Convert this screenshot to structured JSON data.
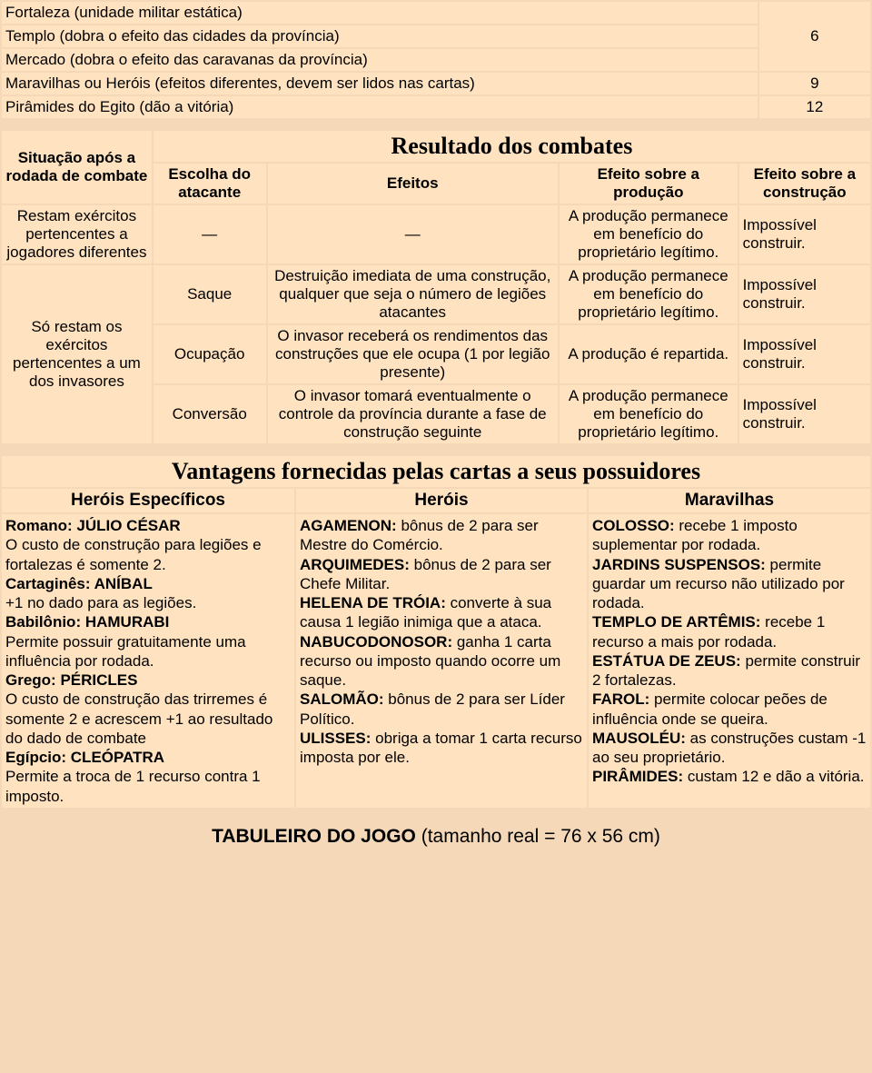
{
  "table1": {
    "rows": [
      {
        "label": "Fortaleza (unidade militar estática)",
        "value": ""
      },
      {
        "label": "Templo (dobra o efeito das cidades da província)",
        "value": ""
      },
      {
        "label": "Mercado (dobra o efeito das caravanas da província)",
        "value": "6"
      },
      {
        "label": "Maravilhas ou Heróis (efeitos diferentes, devem ser lidos nas cartas)",
        "value": "9"
      },
      {
        "label": "Pirâmides do Egito (dão a vitória)",
        "value": "12"
      }
    ]
  },
  "table2": {
    "title": "Resultado dos combates",
    "headers": {
      "c1": "Situação após a rodada de combate",
      "c2": "Escolha do atacante",
      "c3": "Efeitos",
      "c4": "Efeito sobre a produção",
      "c5": "Efeito sobre a construção"
    },
    "r1": {
      "situation": "Restam exércitos pertencentes a jogadores diferentes",
      "choice": "—",
      "effect": "—",
      "prod": "A produção permanece em benefício do proprietário legítimo.",
      "cons": "Impossível construir."
    },
    "r2": {
      "situation": "Só restam os exércitos pertencentes a um dos invasores",
      "a": {
        "choice": "Saque",
        "effect": "Destruição imediata de uma construção, qualquer que seja o número de legiões atacantes",
        "prod": "A produção permanece em benefício do proprietário legítimo.",
        "cons": "Impossível construir."
      },
      "b": {
        "choice": "Ocupação",
        "effect": "O invasor receberá os rendimentos das construções que ele ocupa (1 por legião presente)",
        "prod": "A produção é repartida.",
        "cons": "Impossível construir."
      },
      "c": {
        "choice": "Conversão",
        "effect": "O invasor tomará eventualmente o controle da província durante a fase de construção seguinte",
        "prod": "A produção permanece em benefício do proprietário legítimo.",
        "cons": "Impossível construir."
      }
    }
  },
  "table3": {
    "title": "Vantagens fornecidas pelas cartas a seus possuidores",
    "headers": {
      "c1": "Heróis Específicos",
      "c2": "Heróis",
      "c3": "Maravilhas"
    },
    "col1": [
      {
        "b": "Romano: JÚLIO CÉSAR",
        "t": ""
      },
      {
        "b": "",
        "t": "O custo de construção para legiões e fortalezas é somente 2."
      },
      {
        "b": "Cartaginês: ANÍBAL",
        "t": ""
      },
      {
        "b": "",
        "t": "+1 no dado para as legiões."
      },
      {
        "b": "Babilônio: HAMURABI",
        "t": ""
      },
      {
        "b": "",
        "t": "Permite possuir gratuitamente uma influência por rodada."
      },
      {
        "b": "Grego: PÉRICLES",
        "t": ""
      },
      {
        "b": "",
        "t": "O custo de construção das trirremes é somente 2 e acrescem +1 ao resultado do dado de combate"
      },
      {
        "b": "Egípcio: CLEÓPATRA",
        "t": ""
      },
      {
        "b": "",
        "t": "Permite a troca de 1 recurso contra 1 imposto."
      }
    ],
    "col2": [
      {
        "b": "AGAMENON:",
        "t": " bônus de 2 para ser Mestre do Comércio."
      },
      {
        "b": "ARQUIMEDES:",
        "t": " bônus de 2 para ser Chefe Militar."
      },
      {
        "b": "HELENA DE TRÓIA:",
        "t": " converte à sua causa 1 legião inimiga que a ataca."
      },
      {
        "b": "NABUCODONOSOR:",
        "t": " ganha 1 carta recurso ou imposto quando ocorre um saque."
      },
      {
        "b": "SALOMÃO:",
        "t": " bônus de 2 para ser Líder Político."
      },
      {
        "b": "ULISSES:",
        "t": " obriga a tomar 1 carta recurso imposta por ele."
      }
    ],
    "col3": [
      {
        "b": "COLOSSO:",
        "t": " recebe 1 imposto suplementar por rodada."
      },
      {
        "b": "JARDINS SUSPENSOS:",
        "t": " permite guardar um recurso não utilizado por rodada."
      },
      {
        "b": "TEMPLO DE ARTÊMIS:",
        "t": " recebe 1 recurso a mais por rodada."
      },
      {
        "b": "ESTÁTUA DE ZEUS:",
        "t": " permite construir 2 fortalezas."
      },
      {
        "b": "FAROL:",
        "t": " permite colocar peões de influência onde se queira."
      },
      {
        "b": "MAUSOLÉU:",
        "t": " as construções custam -1 ao seu proprietário."
      },
      {
        "b": "PIRÂMIDES:",
        "t": " custam 12 e dão a vitória."
      }
    ]
  },
  "footer": {
    "bold": "TABULEIRO DO JOGO",
    "rest": " (tamanho real = 76 x 56 cm)"
  },
  "colors": {
    "page_bg": "#f5d8b8",
    "cell_bg": "#ffe3c1",
    "text": "#000000"
  }
}
